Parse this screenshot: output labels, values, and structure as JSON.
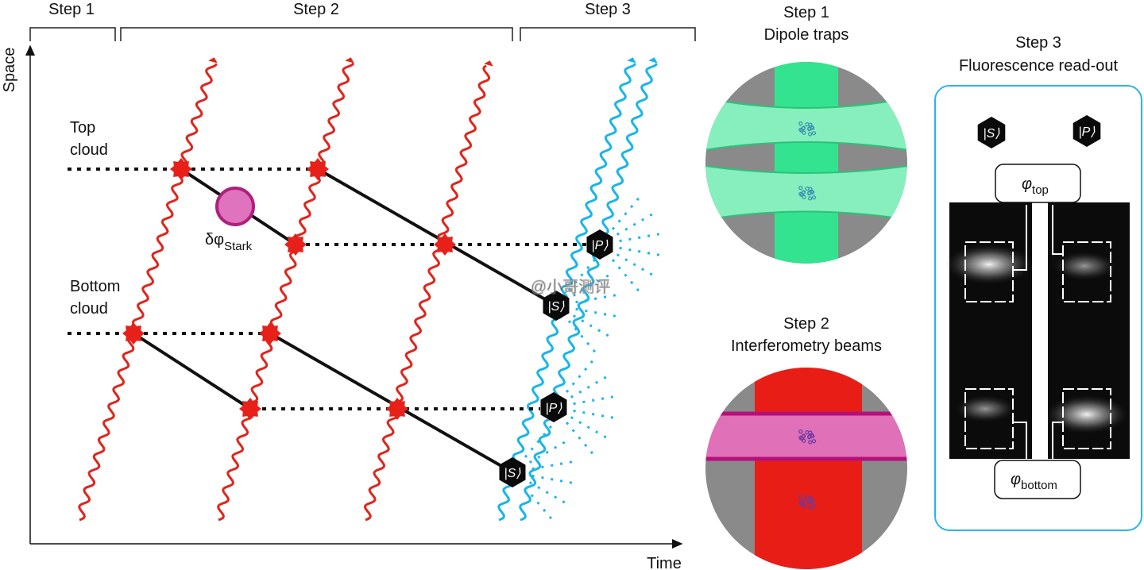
{
  "timeline": {
    "brackets": [
      "Step 1",
      "Step 2",
      "Step 3"
    ],
    "y_axis": "Space",
    "x_axis": "Time",
    "top_cloud": [
      "Top",
      "cloud"
    ],
    "bottom_cloud": [
      "Bottom",
      "cloud"
    ],
    "stark": {
      "symbol": "δφ",
      "subscript": "Stark"
    },
    "state_s": "|S⟩",
    "state_p": "|P⟩"
  },
  "panels": [
    {
      "title": "Step 1",
      "subtitle": "Dipole traps"
    },
    {
      "title": "Step 2",
      "subtitle": "Interferometry beams"
    },
    {
      "title": "Step 3",
      "subtitle": "Fluorescence read-out",
      "phase_top": {
        "symbol": "φ",
        "subscript": "top"
      },
      "phase_bottom": {
        "symbol": "φ",
        "subscript": "bottom"
      }
    }
  ],
  "watermark": "@小哥测评"
}
